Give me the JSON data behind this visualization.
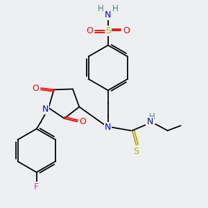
{
  "background_color": "#eeeff0",
  "atom_colors": {
    "N": "#0000ff",
    "O": "#ff0000",
    "S_yellow": "#bbaa00",
    "F": "#cc44aa",
    "H": "#408080",
    "C": "#000000"
  },
  "figsize": [
    3.0,
    3.0
  ],
  "dpi": 100
}
